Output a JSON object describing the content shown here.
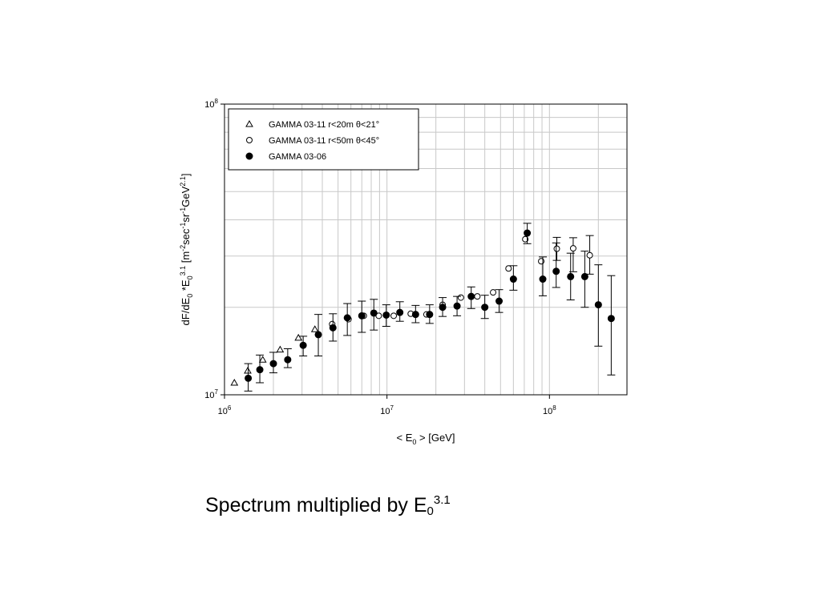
{
  "caption": {
    "text": "Spectrum multiplied by E",
    "sub": "0",
    "sup": "3.1"
  },
  "chart_data": {
    "type": "scatter",
    "log_x": true,
    "log_y": true,
    "xlim": [
      1000000,
      300000000
    ],
    "ylim": [
      10000000,
      100000000
    ],
    "grid": true,
    "legend_position": "top-left",
    "x_ticks": [
      {
        "value": 1000000,
        "base": "10",
        "exp": "6"
      },
      {
        "value": 10000000,
        "base": "10",
        "exp": "7"
      },
      {
        "value": 100000000,
        "base": "10",
        "exp": "8"
      }
    ],
    "y_ticks": [
      {
        "value": 10000000,
        "base": "10",
        "exp": "7"
      },
      {
        "value": 100000000,
        "base": "10",
        "exp": "8"
      }
    ],
    "xlabel": {
      "parts": [
        {
          "t": "< E",
          "s": "n"
        },
        {
          "t": "0",
          "s": "sub"
        },
        {
          "t": " > [GeV]",
          "s": "n"
        }
      ]
    },
    "ylabel": {
      "parts": [
        {
          "t": "dF/dE",
          "s": "n"
        },
        {
          "t": "0",
          "s": "sub"
        },
        {
          "t": " *E",
          "s": "n"
        },
        {
          "t": "0",
          "s": "sub"
        },
        {
          "t": "3.1",
          "s": "sup"
        },
        {
          "t": "  [m",
          "s": "n"
        },
        {
          "t": "-2",
          "s": "sup"
        },
        {
          "t": "sec",
          "s": "n"
        },
        {
          "t": "-1",
          "s": "sup"
        },
        {
          "t": "sr",
          "s": "n"
        },
        {
          "t": "-1",
          "s": "sup"
        },
        {
          "t": "GeV",
          "s": "n"
        },
        {
          "t": "2.1",
          "s": "sup"
        },
        {
          "t": "]",
          "s": "n"
        }
      ]
    },
    "series": [
      {
        "name": "GAMMA 03-11 r<20m θ<21°",
        "marker": "triangle-open",
        "points": [
          {
            "x": 1150000,
            "y": 11000000
          },
          {
            "x": 1390000,
            "y": 12100000
          },
          {
            "x": 1720000,
            "y": 13200000
          },
          {
            "x": 2200000,
            "y": 14300000
          },
          {
            "x": 2850000,
            "y": 15700000
          },
          {
            "x": 3600000,
            "y": 16800000
          }
        ]
      },
      {
        "name": "GAMMA 03-11 r<50m θ<45°",
        "marker": "circle-open",
        "points": [
          {
            "x": 4600000,
            "y": 17500000
          },
          {
            "x": 5800000,
            "y": 18200000
          },
          {
            "x": 7200000,
            "y": 18700000
          },
          {
            "x": 8900000,
            "y": 18700000
          },
          {
            "x": 11000000,
            "y": 18700000
          },
          {
            "x": 14000000,
            "y": 19000000
          },
          {
            "x": 17500000,
            "y": 18900000
          },
          {
            "x": 22000000,
            "y": 20400000
          },
          {
            "x": 28500000,
            "y": 21600000
          },
          {
            "x": 36000000,
            "y": 21800000
          },
          {
            "x": 45000000,
            "y": 22500000
          },
          {
            "x": 56000000,
            "y": 27200000
          },
          {
            "x": 71000000,
            "y": 34300000
          },
          {
            "x": 89000000,
            "y": 28800000
          },
          {
            "x": 111000000,
            "y": 31800000,
            "err": [
              29000000,
              34800000
            ]
          },
          {
            "x": 140000000,
            "y": 31900000,
            "err": [
              26500000,
              34700000
            ]
          },
          {
            "x": 177000000,
            "y": 30200000,
            "err": [
              26000000,
              35300000
            ]
          }
        ]
      },
      {
        "name": "GAMMA 03-06",
        "marker": "circle-filled",
        "points": [
          {
            "x": 1400000,
            "y": 11400000,
            "err": [
              10300000,
              12800000
            ]
          },
          {
            "x": 1650000,
            "y": 12200000,
            "err": [
              11000000,
              13700000
            ]
          },
          {
            "x": 2000000,
            "y": 12800000,
            "err": [
              11900000,
              14000000
            ]
          },
          {
            "x": 2450000,
            "y": 13200000,
            "err": [
              12400000,
              14400000
            ]
          },
          {
            "x": 3050000,
            "y": 14800000,
            "err": [
              13600000,
              15900000
            ]
          },
          {
            "x": 3780000,
            "y": 16100000,
            "err": [
              13600000,
              18900000
            ]
          },
          {
            "x": 4650000,
            "y": 17000000,
            "err": [
              15300000,
              19000000
            ]
          },
          {
            "x": 5700000,
            "y": 18400000,
            "err": [
              16000000,
              20600000
            ]
          },
          {
            "x": 7000000,
            "y": 18700000,
            "err": [
              16400000,
              21000000
            ]
          },
          {
            "x": 8300000,
            "y": 19100000,
            "err": [
              16700000,
              21300000
            ]
          },
          {
            "x": 9900000,
            "y": 18800000,
            "err": [
              17200000,
              20400000
            ]
          },
          {
            "x": 12000000,
            "y": 19200000,
            "err": [
              17900000,
              20900000
            ]
          },
          {
            "x": 15000000,
            "y": 18900000,
            "err": [
              17700000,
              20300000
            ]
          },
          {
            "x": 18300000,
            "y": 18900000,
            "err": [
              17600000,
              20400000
            ]
          },
          {
            "x": 22000000,
            "y": 20000000,
            "err": [
              18600000,
              21600000
            ]
          },
          {
            "x": 27000000,
            "y": 20200000,
            "err": [
              18700000,
              21800000
            ]
          },
          {
            "x": 33000000,
            "y": 21800000,
            "err": [
              19800000,
              23500000
            ]
          },
          {
            "x": 40000000,
            "y": 20000000,
            "err": [
              18300000,
              22000000
            ]
          },
          {
            "x": 49000000,
            "y": 21000000,
            "err": [
              19200000,
              23000000
            ]
          },
          {
            "x": 60000000,
            "y": 25000000,
            "err": [
              22900000,
              27800000
            ]
          },
          {
            "x": 73000000,
            "y": 36000000,
            "err": [
              33100000,
              38900000
            ]
          },
          {
            "x": 91000000,
            "y": 25000000,
            "err": [
              21900000,
              29800000
            ]
          },
          {
            "x": 110000000,
            "y": 26600000,
            "err": [
              23400000,
              33300000
            ]
          },
          {
            "x": 135000000,
            "y": 25500000,
            "err": [
              21200000,
              30700000
            ]
          },
          {
            "x": 165000000,
            "y": 25500000,
            "err": [
              20000000,
              31200000
            ]
          },
          {
            "x": 200000000,
            "y": 20400000,
            "err": [
              14700000,
              28000000
            ]
          },
          {
            "x": 240000000,
            "y": 18300000,
            "err": [
              11700000,
              25700000
            ]
          }
        ]
      }
    ]
  }
}
